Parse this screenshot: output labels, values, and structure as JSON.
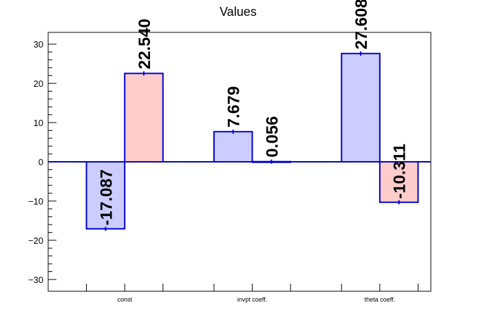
{
  "chart_data": {
    "type": "bar",
    "title": "Values",
    "xlabel": "",
    "ylabel": "",
    "categories": [
      "const",
      "invpt coeff.",
      "theta coeff."
    ],
    "series": [
      {
        "values": [
          -17.087,
          7.679,
          27.608
        ],
        "labels": [
          "-17.087",
          "7.679",
          "27.608"
        ],
        "color": "#ccccff"
      },
      {
        "values": [
          22.54,
          0.056,
          -10.311
        ],
        "labels": [
          "22.540",
          "0.056",
          "-10.311"
        ],
        "color": "#ffcccc"
      }
    ],
    "ylim": [
      -33,
      33
    ],
    "yticks": [
      -30,
      -20,
      -10,
      0,
      10,
      20,
      30
    ],
    "ytick_labels": [
      "−30",
      "−20",
      "−10",
      "0",
      "10",
      "20",
      "30"
    ],
    "grid": false,
    "legend": false,
    "edge_color": "#0000cc"
  }
}
